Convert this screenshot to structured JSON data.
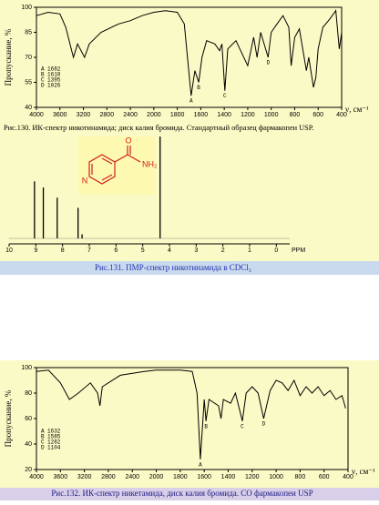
{
  "chart_data": [
    {
      "type": "line",
      "ylabel": "Пропускание, %",
      "xlabel": "ν, см⁻¹",
      "caption": "Рис.130. ИК-спектр никотинамида; диск калия бромида. Стандартный образец фармакопеи USP.",
      "xlim": [
        4000,
        400
      ],
      "xticks": [
        4000,
        3600,
        3200,
        2800,
        2400,
        2000,
        1800,
        1600,
        1400,
        1200,
        1000,
        800,
        600,
        400
      ],
      "ylim": [
        40,
        100
      ],
      "yticks": [
        40,
        55,
        70,
        85,
        100
      ],
      "series": [
        {
          "color": "#000000",
          "x": [
            4000,
            3800,
            3600,
            3500,
            3400,
            3370,
            3300,
            3180,
            3100,
            2900,
            2600,
            2400,
            2200,
            2000,
            1900,
            1800,
            1740,
            1700,
            1682,
            1650,
            1618,
            1590,
            1550,
            1480,
            1440,
            1420,
            1395,
            1370,
            1300,
            1200,
            1150,
            1120,
            1090,
            1026,
            1000,
            950,
            900,
            850,
            830,
            800,
            760,
            700,
            680,
            640,
            620,
            600,
            560,
            500,
            450,
            420,
            400
          ],
          "values": [
            95,
            97,
            96,
            88,
            74,
            70,
            78,
            70,
            78,
            85,
            90,
            92,
            95,
            97,
            98,
            97,
            90,
            60,
            47,
            62,
            55,
            70,
            80,
            78,
            74,
            78,
            50,
            75,
            80,
            65,
            82,
            70,
            85,
            70,
            85,
            90,
            95,
            88,
            65,
            82,
            87,
            62,
            70,
            52,
            58,
            75,
            88,
            93,
            98,
            75,
            85
          ]
        }
      ],
      "peaks": [
        {
          "label": "A",
          "value": 1682
        },
        {
          "label": "B",
          "value": 1618
        },
        {
          "label": "C",
          "value": 1395
        },
        {
          "label": "D",
          "value": 1026
        }
      ]
    },
    {
      "type": "stem",
      "caption": "Рис.131.  ПМР-спектр никотинамида в CDCl₃",
      "xlabel": "PPM",
      "structure_labels": {
        "carbonyl": "O",
        "amide": "NH₂",
        "ring": "N"
      },
      "xlim": [
        10,
        -0.5
      ],
      "xticks": [
        10,
        9,
        8,
        7,
        6,
        5,
        4,
        3,
        2,
        1,
        0
      ],
      "series": [
        {
          "color": "#000000",
          "x": [
            9.05,
            8.72,
            8.2,
            7.42,
            7.27,
            4.35
          ],
          "values": [
            56,
            50,
            40,
            30,
            4,
            100
          ]
        }
      ]
    },
    {
      "type": "line",
      "ylabel": "Пропускание, %",
      "xlabel": "ν, см⁻¹",
      "caption": "Рис.132.  ИК-спектр никетамида, диск калия бромида. СО фармакопеи USP",
      "xlim": [
        4000,
        400
      ],
      "xticks": [
        4000,
        3600,
        3200,
        2800,
        2400,
        2000,
        1800,
        1600,
        1400,
        1200,
        1000,
        800,
        600,
        400
      ],
      "ylim": [
        20,
        100
      ],
      "yticks": [
        20,
        40,
        60,
        80,
        100
      ],
      "series": [
        {
          "color": "#000000",
          "x": [
            4000,
            3800,
            3600,
            3450,
            3300,
            3100,
            2980,
            2940,
            2900,
            2600,
            2200,
            2000,
            1800,
            1700,
            1660,
            1632,
            1600,
            1585,
            1560,
            1480,
            1460,
            1440,
            1380,
            1340,
            1282,
            1250,
            1200,
            1150,
            1104,
            1050,
            1000,
            950,
            900,
            850,
            800,
            750,
            700,
            650,
            600,
            550,
            500,
            450,
            420
          ],
          "values": [
            97,
            98,
            88,
            75,
            80,
            88,
            80,
            70,
            85,
            94,
            97,
            98,
            98,
            97,
            80,
            28,
            75,
            58,
            75,
            70,
            60,
            75,
            72,
            80,
            58,
            80,
            85,
            80,
            60,
            82,
            90,
            88,
            82,
            90,
            78,
            85,
            80,
            85,
            78,
            82,
            75,
            78,
            68
          ]
        }
      ],
      "peaks": [
        {
          "label": "A",
          "value": 1632
        },
        {
          "label": "B",
          "value": 1585
        },
        {
          "label": "C",
          "value": 1282
        },
        {
          "label": "D",
          "value": 1104
        }
      ]
    }
  ]
}
